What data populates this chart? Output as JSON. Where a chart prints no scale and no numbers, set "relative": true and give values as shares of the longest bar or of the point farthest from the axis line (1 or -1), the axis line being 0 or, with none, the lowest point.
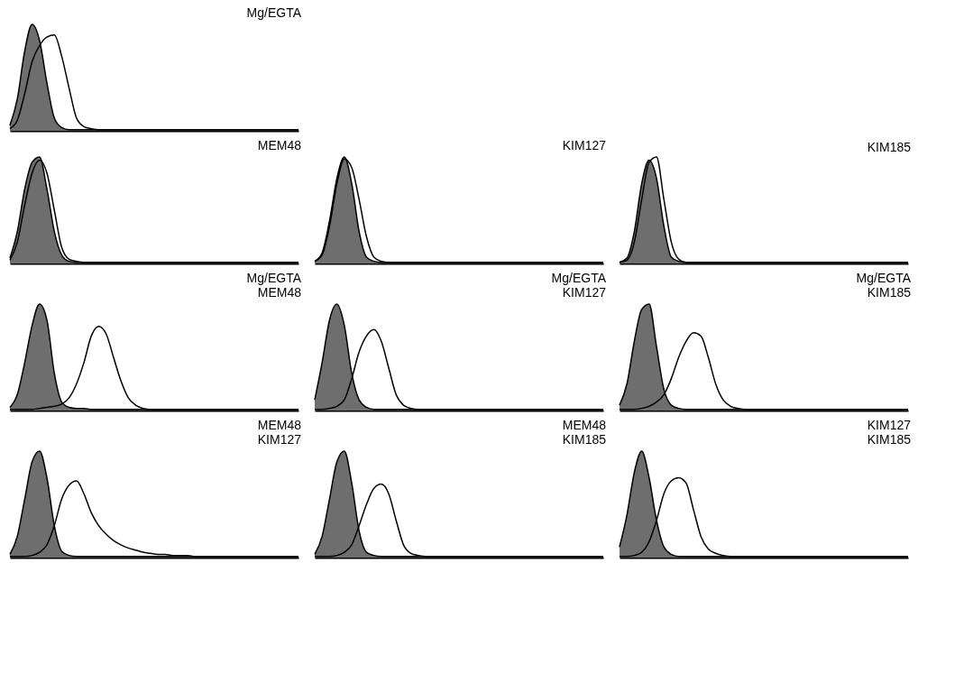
{
  "chart_data": [
    {
      "type": "area",
      "relative": true,
      "title": "Mg/EGTA",
      "categories": [
        null,
        null,
        null,
        null,
        null,
        null,
        null,
        null,
        null,
        null,
        null,
        null,
        null,
        null,
        null,
        null,
        null,
        null,
        null,
        null,
        null,
        null,
        null,
        null,
        null,
        null,
        null,
        null,
        null,
        null,
        null,
        null,
        null,
        null,
        null,
        null,
        null,
        null,
        null,
        null
      ],
      "series": [
        {
          "type": "area",
          "color": "#6e6e6e",
          "values": [
            0.05,
            0.3,
            0.75,
            1,
            0.85,
            0.45,
            0.12,
            0.03,
            0.01,
            0.01,
            0.01,
            0.01,
            0.01,
            0.01,
            0.01,
            0.01,
            0.01,
            0.01,
            0.01,
            0.01,
            0.01,
            0.01,
            0.01,
            0.01,
            0.01,
            0.01,
            0.01,
            0.01,
            0.01,
            0.01,
            0.01,
            0.01,
            0.01,
            0.01,
            0.01,
            0.01,
            0.01,
            0.01,
            0.01,
            0.01
          ]
        },
        {
          "type": "line",
          "color": "#000000",
          "values": [
            0.02,
            0.1,
            0.35,
            0.65,
            0.8,
            0.88,
            0.9,
            0.7,
            0.4,
            0.12,
            0.04,
            0.02,
            0.01,
            0.01,
            0.01,
            0.01,
            0.01,
            0.01,
            0.01,
            0.01,
            0.01,
            0.01,
            0.01,
            0.01,
            0.01,
            0.01,
            0.01,
            0.01,
            0.01,
            0.01,
            0.01,
            0.01,
            0.01,
            0.01,
            0.01,
            0.01,
            0.01,
            0.01,
            0.01,
            0.01
          ]
        }
      ]
    },
    {
      "type": "area",
      "relative": true,
      "title": "MEM48",
      "categories": [
        null,
        null,
        null,
        null,
        null,
        null,
        null,
        null,
        null,
        null,
        null,
        null,
        null,
        null,
        null,
        null,
        null,
        null,
        null,
        null,
        null,
        null,
        null,
        null,
        null,
        null,
        null,
        null,
        null,
        null,
        null,
        null,
        null,
        null,
        null,
        null,
        null,
        null,
        null,
        null
      ],
      "series": [
        {
          "type": "area",
          "color": "#6e6e6e",
          "values": [
            0.05,
            0.3,
            0.7,
            0.95,
            1,
            0.7,
            0.3,
            0.08,
            0.02,
            0.01,
            0.01,
            0.01,
            0.01,
            0.01,
            0.01,
            0.01,
            0.01,
            0.01,
            0.01,
            0.01,
            0.01,
            0.01,
            0.01,
            0.01,
            0.01,
            0.01,
            0.01,
            0.01,
            0.01,
            0.01,
            0.01,
            0.01,
            0.01,
            0.01,
            0.01,
            0.01,
            0.01,
            0.01,
            0.01,
            0.01
          ]
        },
        {
          "type": "line",
          "color": "#000000",
          "values": [
            0.03,
            0.2,
            0.55,
            0.85,
            0.97,
            0.85,
            0.5,
            0.15,
            0.04,
            0.02,
            0.01,
            0.01,
            0.01,
            0.01,
            0.01,
            0.01,
            0.01,
            0.01,
            0.01,
            0.01,
            0.01,
            0.01,
            0.01,
            0.01,
            0.01,
            0.01,
            0.01,
            0.01,
            0.01,
            0.01,
            0.01,
            0.01,
            0.01,
            0.01,
            0.01,
            0.01,
            0.01,
            0.01,
            0.01,
            0.01
          ]
        }
      ]
    },
    {
      "type": "area",
      "relative": true,
      "title": "KIM127",
      "categories": [
        null,
        null,
        null,
        null,
        null,
        null,
        null,
        null,
        null,
        null,
        null,
        null,
        null,
        null,
        null,
        null,
        null,
        null,
        null,
        null,
        null,
        null,
        null,
        null,
        null,
        null,
        null,
        null,
        null,
        null,
        null,
        null,
        null,
        null,
        null,
        null,
        null,
        null,
        null,
        null
      ],
      "series": [
        {
          "type": "area",
          "color": "#6e6e6e",
          "values": [
            0.02,
            0.1,
            0.4,
            0.8,
            1,
            0.75,
            0.3,
            0.06,
            0.02,
            0.01,
            0.01,
            0.01,
            0.01,
            0.01,
            0.01,
            0.01,
            0.01,
            0.01,
            0.01,
            0.01,
            0.01,
            0.01,
            0.01,
            0.01,
            0.01,
            0.01,
            0.01,
            0.01,
            0.01,
            0.01,
            0.01,
            0.01,
            0.01,
            0.01,
            0.01,
            0.01,
            0.01,
            0.01,
            0.01,
            0.01
          ]
        },
        {
          "type": "line",
          "color": "#000000",
          "values": [
            0.02,
            0.08,
            0.35,
            0.75,
            0.98,
            0.9,
            0.6,
            0.25,
            0.06,
            0.02,
            0.01,
            0.01,
            0.01,
            0.01,
            0.01,
            0.01,
            0.01,
            0.01,
            0.01,
            0.01,
            0.01,
            0.01,
            0.01,
            0.01,
            0.01,
            0.01,
            0.01,
            0.01,
            0.01,
            0.01,
            0.01,
            0.01,
            0.01,
            0.01,
            0.01,
            0.01,
            0.01,
            0.01,
            0.01,
            0.01
          ]
        }
      ]
    },
    {
      "type": "area",
      "relative": true,
      "title": "KIM185",
      "categories": [
        null,
        null,
        null,
        null,
        null,
        null,
        null,
        null,
        null,
        null,
        null,
        null,
        null,
        null,
        null,
        null,
        null,
        null,
        null,
        null,
        null,
        null,
        null,
        null,
        null,
        null,
        null,
        null,
        null,
        null,
        null,
        null,
        null,
        null,
        null,
        null,
        null,
        null,
        null,
        null
      ],
      "series": [
        {
          "type": "area",
          "color": "#6e6e6e",
          "values": [
            0.01,
            0.05,
            0.3,
            0.75,
            0.97,
            0.8,
            0.35,
            0.06,
            0.02,
            0.01,
            0.01,
            0.01,
            0.01,
            0.01,
            0.01,
            0.01,
            0.01,
            0.01,
            0.01,
            0.01,
            0.01,
            0.01,
            0.01,
            0.01,
            0.01,
            0.01,
            0.01,
            0.01,
            0.01,
            0.01,
            0.01,
            0.01,
            0.01,
            0.01,
            0.01,
            0.01,
            0.01,
            0.01,
            0.01,
            0.01
          ]
        },
        {
          "type": "line",
          "color": "#000000",
          "values": [
            0.01,
            0.03,
            0.2,
            0.6,
            0.95,
            1,
            0.6,
            0.2,
            0.04,
            0.01,
            0.01,
            0.01,
            0.01,
            0.01,
            0.01,
            0.01,
            0.01,
            0.01,
            0.01,
            0.01,
            0.01,
            0.01,
            0.01,
            0.01,
            0.01,
            0.01,
            0.01,
            0.01,
            0.01,
            0.01,
            0.01,
            0.01,
            0.01,
            0.01,
            0.01,
            0.01,
            0.01,
            0.01,
            0.01,
            0.01
          ]
        }
      ]
    },
    {
      "type": "area",
      "relative": true,
      "title": "Mg/EGTA\nMEM48",
      "categories": [
        null,
        null,
        null,
        null,
        null,
        null,
        null,
        null,
        null,
        null,
        null,
        null,
        null,
        null,
        null,
        null,
        null,
        null,
        null,
        null,
        null,
        null,
        null,
        null,
        null,
        null,
        null,
        null,
        null,
        null,
        null,
        null,
        null,
        null,
        null,
        null,
        null,
        null,
        null,
        null
      ],
      "series": [
        {
          "type": "area",
          "color": "#6e6e6e",
          "values": [
            0.03,
            0.15,
            0.45,
            0.8,
            1,
            0.85,
            0.35,
            0.08,
            0.03,
            0.02,
            0.02,
            0.01,
            0.01,
            0.01,
            0.01,
            0.01,
            0.01,
            0.01,
            0.01,
            0.01,
            0.01,
            0.01,
            0.01,
            0.01,
            0.01,
            0.01,
            0.01,
            0.01,
            0.01,
            0.01,
            0.01,
            0.01,
            0.01,
            0.01,
            0.01,
            0.01,
            0.01,
            0.01,
            0.01,
            0.01
          ]
        },
        {
          "type": "line",
          "color": "#000000",
          "values": [
            0.01,
            0.01,
            0.01,
            0.01,
            0.02,
            0.03,
            0.04,
            0.06,
            0.12,
            0.25,
            0.45,
            0.7,
            0.79,
            0.72,
            0.5,
            0.28,
            0.12,
            0.05,
            0.02,
            0.01,
            0.01,
            0.01,
            0.01,
            0.01,
            0.01,
            0.01,
            0.01,
            0.01,
            0.01,
            0.01,
            0.01,
            0.01,
            0.01,
            0.01,
            0.01,
            0.01,
            0.01,
            0.01,
            0.01,
            0.01
          ]
        }
      ]
    },
    {
      "type": "area",
      "relative": true,
      "title": "Mg/EGTA\nKIM127",
      "categories": [
        null,
        null,
        null,
        null,
        null,
        null,
        null,
        null,
        null,
        null,
        null,
        null,
        null,
        null,
        null,
        null,
        null,
        null,
        null,
        null,
        null,
        null,
        null,
        null,
        null,
        null,
        null,
        null,
        null,
        null,
        null,
        null,
        null,
        null,
        null,
        null,
        null,
        null,
        null,
        null
      ],
      "series": [
        {
          "type": "area",
          "color": "#6e6e6e",
          "values": [
            0.1,
            0.45,
            0.85,
            1,
            0.8,
            0.35,
            0.1,
            0.03,
            0.01,
            0.01,
            0.01,
            0.01,
            0.01,
            0.01,
            0.01,
            0.01,
            0.01,
            0.01,
            0.01,
            0.01,
            0.01,
            0.01,
            0.01,
            0.01,
            0.01,
            0.01,
            0.01,
            0.01,
            0.01,
            0.01,
            0.01,
            0.01,
            0.01,
            0.01,
            0.01,
            0.01,
            0.01,
            0.01,
            0.01,
            0.01
          ]
        },
        {
          "type": "line",
          "color": "#000000",
          "values": [
            0.01,
            0.01,
            0.02,
            0.04,
            0.1,
            0.3,
            0.55,
            0.7,
            0.76,
            0.65,
            0.4,
            0.15,
            0.05,
            0.02,
            0.01,
            0.01,
            0.01,
            0.01,
            0.01,
            0.01,
            0.01,
            0.01,
            0.01,
            0.01,
            0.01,
            0.01,
            0.01,
            0.01,
            0.01,
            0.01,
            0.01,
            0.01,
            0.01,
            0.01,
            0.01,
            0.01,
            0.01,
            0.01,
            0.01,
            0.01
          ]
        }
      ]
    },
    {
      "type": "area",
      "relative": true,
      "title": "Mg/EGTA\nKIM185",
      "categories": [
        null,
        null,
        null,
        null,
        null,
        null,
        null,
        null,
        null,
        null,
        null,
        null,
        null,
        null,
        null,
        null,
        null,
        null,
        null,
        null,
        null,
        null,
        null,
        null,
        null,
        null,
        null,
        null,
        null,
        null,
        null,
        null,
        null,
        null,
        null,
        null,
        null,
        null,
        null,
        null
      ],
      "series": [
        {
          "type": "area",
          "color": "#6e6e6e",
          "values": [
            0.05,
            0.25,
            0.65,
            0.95,
            1,
            0.6,
            0.2,
            0.05,
            0.02,
            0.01,
            0.01,
            0.01,
            0.01,
            0.01,
            0.01,
            0.01,
            0.01,
            0.01,
            0.01,
            0.01,
            0.01,
            0.01,
            0.01,
            0.01,
            0.01,
            0.01,
            0.01,
            0.01,
            0.01,
            0.01,
            0.01,
            0.01,
            0.01,
            0.01,
            0.01,
            0.01,
            0.01,
            0.01,
            0.01,
            0.01
          ]
        },
        {
          "type": "line",
          "color": "#000000",
          "values": [
            0.01,
            0.01,
            0.01,
            0.02,
            0.04,
            0.08,
            0.15,
            0.3,
            0.5,
            0.65,
            0.73,
            0.7,
            0.5,
            0.25,
            0.1,
            0.04,
            0.02,
            0.01,
            0.01,
            0.01,
            0.01,
            0.01,
            0.01,
            0.01,
            0.01,
            0.01,
            0.01,
            0.01,
            0.01,
            0.01,
            0.01,
            0.01,
            0.01,
            0.01,
            0.01,
            0.01,
            0.01,
            0.01,
            0.01,
            0.01
          ]
        }
      ]
    },
    {
      "type": "area",
      "relative": true,
      "title": "MEM48\nKIM127",
      "categories": [
        null,
        null,
        null,
        null,
        null,
        null,
        null,
        null,
        null,
        null,
        null,
        null,
        null,
        null,
        null,
        null,
        null,
        null,
        null,
        null,
        null,
        null,
        null,
        null,
        null,
        null,
        null,
        null,
        null,
        null,
        null,
        null,
        null,
        null,
        null,
        null,
        null,
        null,
        null,
        null
      ],
      "series": [
        {
          "type": "area",
          "color": "#6e6e6e",
          "values": [
            0.03,
            0.2,
            0.55,
            0.9,
            1,
            0.75,
            0.3,
            0.06,
            0.02,
            0.01,
            0.01,
            0.01,
            0.01,
            0.01,
            0.01,
            0.01,
            0.01,
            0.01,
            0.01,
            0.01,
            0.01,
            0.01,
            0.01,
            0.01,
            0.01,
            0.01,
            0.01,
            0.01,
            0.01,
            0.01,
            0.01,
            0.01,
            0.01,
            0.01,
            0.01,
            0.01,
            0.01,
            0.01,
            0.01,
            0.01
          ]
        },
        {
          "type": "line",
          "color": "#000000",
          "values": [
            0.01,
            0.01,
            0.01,
            0.02,
            0.05,
            0.12,
            0.3,
            0.55,
            0.68,
            0.72,
            0.6,
            0.42,
            0.3,
            0.22,
            0.16,
            0.12,
            0.09,
            0.07,
            0.05,
            0.04,
            0.03,
            0.03,
            0.02,
            0.02,
            0.02,
            0.01,
            0.01,
            0.01,
            0.01,
            0.01,
            0.01,
            0.01,
            0.01,
            0.01,
            0.01,
            0.01,
            0.01,
            0.01,
            0.01,
            0.01
          ]
        }
      ]
    },
    {
      "type": "area",
      "relative": true,
      "title": "MEM48\nKIM185",
      "categories": [
        null,
        null,
        null,
        null,
        null,
        null,
        null,
        null,
        null,
        null,
        null,
        null,
        null,
        null,
        null,
        null,
        null,
        null,
        null,
        null,
        null,
        null,
        null,
        null,
        null,
        null,
        null,
        null,
        null,
        null,
        null,
        null,
        null,
        null,
        null,
        null,
        null,
        null,
        null,
        null
      ],
      "series": [
        {
          "type": "area",
          "color": "#6e6e6e",
          "values": [
            0.03,
            0.2,
            0.55,
            0.9,
            1,
            0.7,
            0.25,
            0.05,
            0.02,
            0.01,
            0.01,
            0.01,
            0.01,
            0.01,
            0.01,
            0.01,
            0.01,
            0.01,
            0.01,
            0.01,
            0.01,
            0.01,
            0.01,
            0.01,
            0.01,
            0.01,
            0.01,
            0.01,
            0.01,
            0.01,
            0.01,
            0.01,
            0.01,
            0.01,
            0.01,
            0.01,
            0.01,
            0.01,
            0.01,
            0.01
          ]
        },
        {
          "type": "line",
          "color": "#000000",
          "values": [
            0.01,
            0.01,
            0.01,
            0.02,
            0.05,
            0.12,
            0.3,
            0.5,
            0.65,
            0.69,
            0.6,
            0.35,
            0.12,
            0.04,
            0.02,
            0.01,
            0.01,
            0.01,
            0.01,
            0.01,
            0.01,
            0.01,
            0.01,
            0.01,
            0.01,
            0.01,
            0.01,
            0.01,
            0.01,
            0.01,
            0.01,
            0.01,
            0.01,
            0.01,
            0.01,
            0.01,
            0.01,
            0.01,
            0.01,
            0.01
          ]
        }
      ]
    },
    {
      "type": "area",
      "relative": true,
      "title": "KIM127\nKIM185",
      "categories": [
        null,
        null,
        null,
        null,
        null,
        null,
        null,
        null,
        null,
        null,
        null,
        null,
        null,
        null,
        null,
        null,
        null,
        null,
        null,
        null,
        null,
        null,
        null,
        null,
        null,
        null,
        null,
        null,
        null,
        null,
        null,
        null,
        null,
        null,
        null,
        null,
        null,
        null,
        null,
        null
      ],
      "series": [
        {
          "type": "area",
          "color": "#6e6e6e",
          "values": [
            0.1,
            0.4,
            0.8,
            1,
            0.75,
            0.35,
            0.1,
            0.03,
            0.01,
            0.01,
            0.01,
            0.01,
            0.01,
            0.01,
            0.01,
            0.01,
            0.01,
            0.01,
            0.01,
            0.01,
            0.01,
            0.01,
            0.01,
            0.01,
            0.01,
            0.01,
            0.01,
            0.01,
            0.01,
            0.01,
            0.01,
            0.01,
            0.01,
            0.01,
            0.01,
            0.01,
            0.01,
            0.01,
            0.01,
            0.01
          ]
        },
        {
          "type": "line",
          "color": "#000000",
          "values": [
            0.01,
            0.01,
            0.02,
            0.05,
            0.15,
            0.35,
            0.6,
            0.72,
            0.75,
            0.7,
            0.45,
            0.2,
            0.08,
            0.04,
            0.02,
            0.01,
            0.01,
            0.01,
            0.01,
            0.01,
            0.01,
            0.01,
            0.01,
            0.01,
            0.01,
            0.01,
            0.01,
            0.01,
            0.01,
            0.01,
            0.01,
            0.01,
            0.01,
            0.01,
            0.01,
            0.01,
            0.01,
            0.01,
            0.01,
            0.01
          ]
        }
      ]
    }
  ]
}
